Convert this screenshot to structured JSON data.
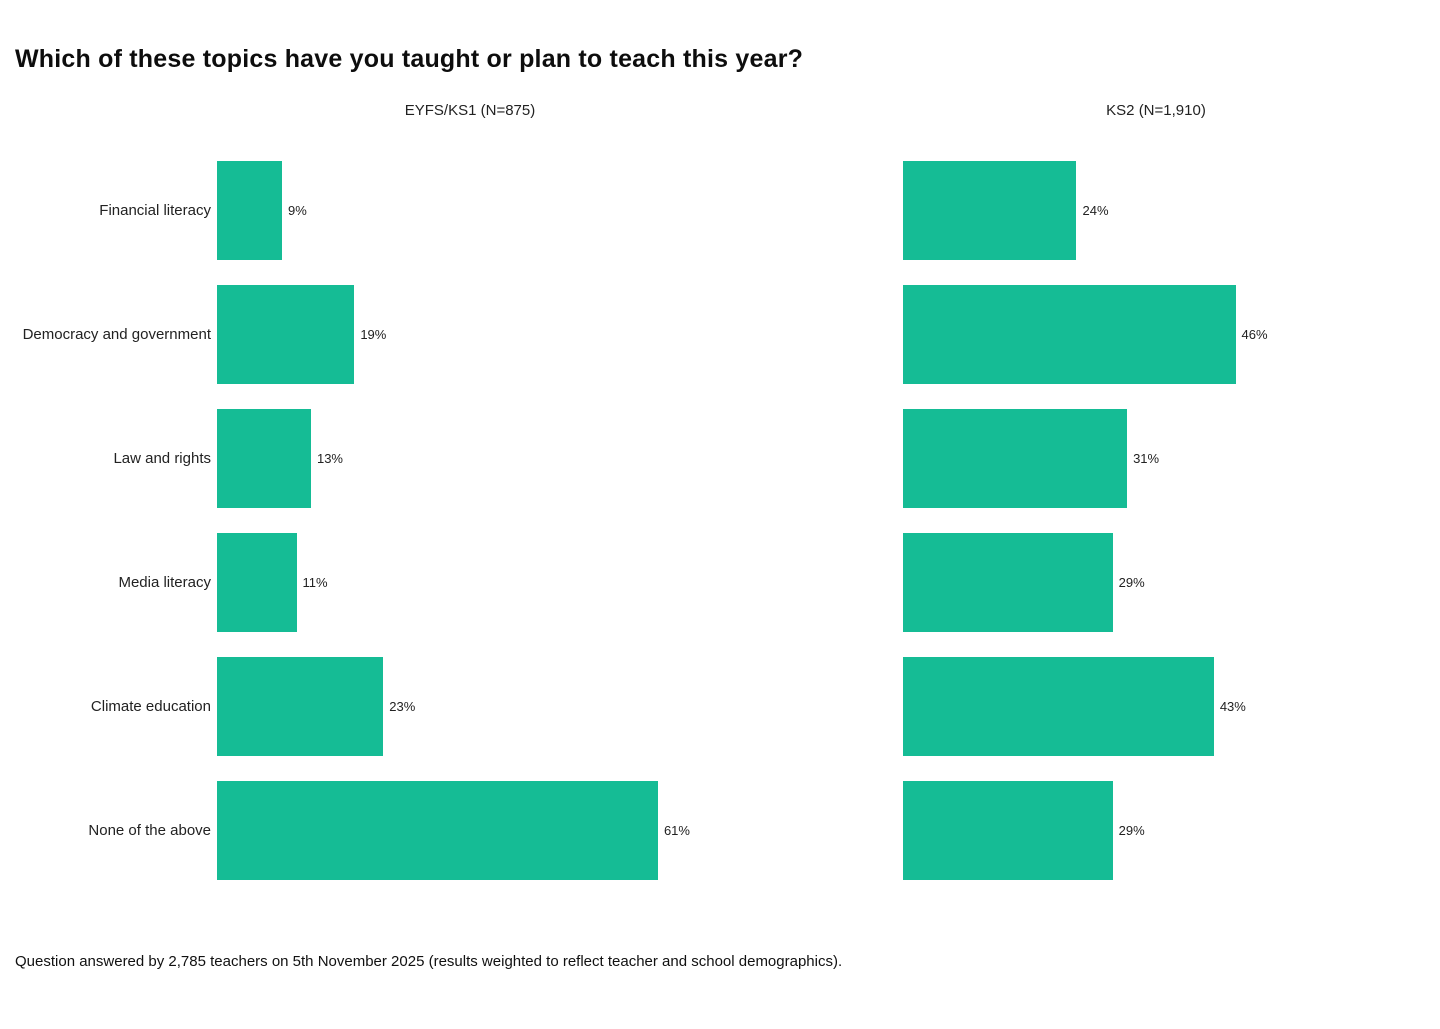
{
  "title": "Which of these topics have you taught or plan to teach this year?",
  "footnote": "Question answered by 2,785 teachers on 5th November 2025 (results weighted to reflect teacher and school demographics).",
  "colors": {
    "bar": "#15bc95",
    "title_text": "#0d0d0d",
    "label_text": "#222222",
    "background": "#ffffff"
  },
  "chart_data": {
    "type": "bar",
    "orientation": "horizontal",
    "title": "Which of these topics have you taught or plan to teach this year?",
    "categories": [
      "Financial literacy",
      "Democracy and government",
      "Law and rights",
      "Media literacy",
      "Climate education",
      "None of the above"
    ],
    "series": [
      {
        "name": "EYFS/KS1 (N=875)",
        "values": [
          9,
          19,
          13,
          11,
          23,
          61
        ]
      },
      {
        "name": "KS2 (N=1,910)",
        "values": [
          24,
          46,
          31,
          29,
          43,
          29
        ]
      }
    ],
    "value_suffix": "%",
    "xlim": [
      0,
      70
    ],
    "grid": false,
    "data_labels": true,
    "legend_position": "panel-titles-top"
  }
}
